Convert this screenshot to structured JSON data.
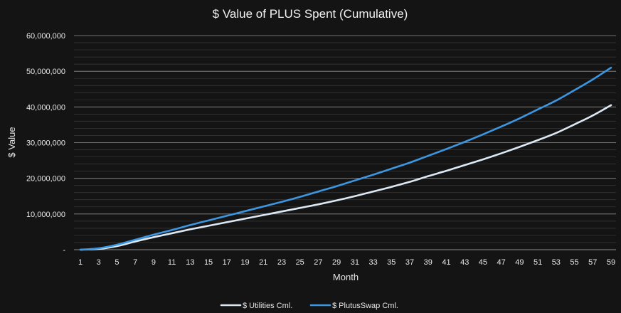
{
  "chart_data": {
    "type": "line",
    "title": "$ Value of PLUS Spent (Cumulative)",
    "xlabel": "Month",
    "ylabel": "$ Value",
    "xlim": [
      1,
      59
    ],
    "ylim": [
      0,
      60000000
    ],
    "y_major_step": 10000000,
    "y_minor_step": 2000000,
    "x_tick_labels": [
      "1",
      "3",
      "5",
      "7",
      "9",
      "11",
      "13",
      "15",
      "17",
      "19",
      "21",
      "23",
      "25",
      "27",
      "29",
      "31",
      "33",
      "35",
      "37",
      "39",
      "41",
      "43",
      "45",
      "47",
      "49",
      "51",
      "53",
      "55",
      "57",
      "59"
    ],
    "y_tick_labels": [
      {
        "value": 0,
        "label": "-"
      },
      {
        "value": 10000000,
        "label": "10,000,000"
      },
      {
        "value": 20000000,
        "label": "20,000,000"
      },
      {
        "value": 30000000,
        "label": "30,000,000"
      },
      {
        "value": 40000000,
        "label": "40,000,000"
      },
      {
        "value": 50000000,
        "label": "50,000,000"
      },
      {
        "value": 60000000,
        "label": "60,000,000"
      }
    ],
    "grid": true,
    "legend_position": "bottom",
    "series": [
      {
        "name": "$ Utilities Cml.",
        "color": "#dce9f5",
        "x": [
          1,
          3,
          5,
          7,
          9,
          11,
          13,
          15,
          17,
          19,
          21,
          23,
          25,
          27,
          29,
          31,
          33,
          35,
          37,
          39,
          41,
          43,
          45,
          47,
          49,
          51,
          53,
          55,
          57,
          59
        ],
        "values": [
          0,
          200000,
          1000000,
          2300000,
          3500000,
          4600000,
          5700000,
          6700000,
          7700000,
          8700000,
          9700000,
          10700000,
          11700000,
          12700000,
          13800000,
          15000000,
          16300000,
          17600000,
          19000000,
          20600000,
          22100000,
          23700000,
          25300000,
          27000000,
          28800000,
          30700000,
          32700000,
          35100000,
          37600000,
          40500000
        ]
      },
      {
        "name": "$ PlutusSwap Cml.",
        "color": "#3d96e0",
        "x": [
          1,
          3,
          5,
          7,
          9,
          11,
          13,
          15,
          17,
          19,
          21,
          23,
          25,
          27,
          29,
          31,
          33,
          35,
          37,
          39,
          41,
          43,
          45,
          47,
          49,
          51,
          53,
          55,
          57,
          59
        ],
        "values": [
          0,
          400000,
          1400000,
          2800000,
          4200000,
          5500000,
          6900000,
          8200000,
          9500000,
          10800000,
          12100000,
          13400000,
          14800000,
          16300000,
          17800000,
          19400000,
          21000000,
          22700000,
          24400000,
          26300000,
          28200000,
          30200000,
          32300000,
          34500000,
          36800000,
          39300000,
          41800000,
          44700000,
          47700000,
          51000000
        ]
      }
    ]
  }
}
